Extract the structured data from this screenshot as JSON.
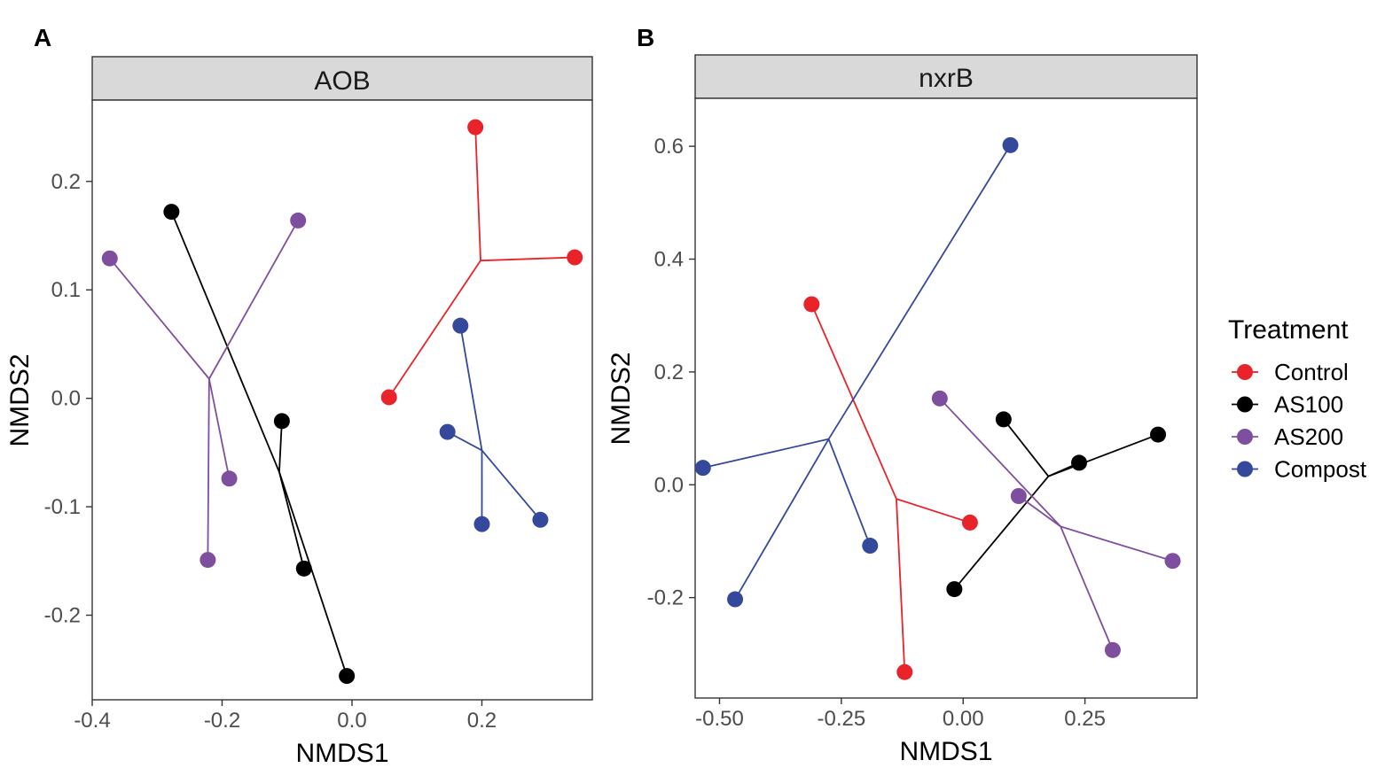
{
  "legend": {
    "title": "Treatment",
    "items": [
      {
        "label": "Control",
        "color": "#e8232a"
      },
      {
        "label": "AS100",
        "color": "#000000"
      },
      {
        "label": "AS200",
        "color": "#7f4f9f"
      },
      {
        "label": "Compost",
        "color": "#34499b"
      }
    ]
  },
  "chart_data": [
    {
      "type": "scatter",
      "panel_letter": "A",
      "title": "AOB",
      "xlabel": "NMDS1",
      "ylabel": "NMDS2",
      "xlim": [
        -0.4,
        0.37
      ],
      "ylim": [
        -0.278,
        0.275
      ],
      "xticks": [
        -0.4,
        -0.2,
        0.0,
        0.2
      ],
      "xtick_labels": [
        "-0.4",
        "-0.2",
        "0.0",
        "0.2"
      ],
      "yticks": [
        -0.2,
        -0.1,
        0.0,
        0.1,
        0.2
      ],
      "ytick_labels": [
        "-0.2",
        "-0.1",
        "0.0",
        "0.1",
        "0.2"
      ],
      "grid": false,
      "series": [
        {
          "name": "Control",
          "color": "#e8232a",
          "centroid": [
            0.198,
            0.127
          ],
          "points": [
            [
              0.19,
              0.25
            ],
            [
              0.343,
              0.13
            ],
            [
              0.057,
              0.001
            ]
          ]
        },
        {
          "name": "AS100",
          "color": "#000000",
          "centroid": [
            -0.112,
            -0.068
          ],
          "points": [
            [
              -0.278,
              0.172
            ],
            [
              -0.108,
              -0.021
            ],
            [
              -0.074,
              -0.157
            ],
            [
              -0.008,
              -0.256
            ]
          ]
        },
        {
          "name": "AS200",
          "color": "#7f4f9f",
          "centroid": [
            -0.22,
            0.018
          ],
          "points": [
            [
              -0.373,
              0.129
            ],
            [
              -0.083,
              0.164
            ],
            [
              -0.189,
              -0.074
            ],
            [
              -0.222,
              -0.149
            ]
          ]
        },
        {
          "name": "Compost",
          "color": "#34499b",
          "centroid": [
            0.2,
            -0.048
          ],
          "points": [
            [
              0.167,
              0.067
            ],
            [
              0.147,
              -0.031
            ],
            [
              0.2,
              -0.116
            ],
            [
              0.29,
              -0.112
            ]
          ]
        }
      ]
    },
    {
      "type": "scatter",
      "panel_letter": "B",
      "title": "nxrB",
      "xlabel": "NMDS1",
      "ylabel": "NMDS2",
      "xlim": [
        -0.55,
        0.48
      ],
      "ylim": [
        -0.378,
        0.685
      ],
      "xticks": [
        -0.5,
        -0.25,
        0.0,
        0.25
      ],
      "xtick_labels": [
        "-0.50",
        "-0.25",
        "0.00",
        "0.25"
      ],
      "yticks": [
        -0.2,
        0.0,
        0.2,
        0.4,
        0.6
      ],
      "ytick_labels": [
        "-0.2",
        "0.0",
        "0.2",
        "0.4",
        "0.6"
      ],
      "grid": false,
      "series": [
        {
          "name": "Control",
          "color": "#e8232a",
          "centroid": [
            -0.137,
            -0.025
          ],
          "points": [
            [
              -0.311,
              0.32
            ],
            [
              0.014,
              -0.067
            ],
            [
              -0.12,
              -0.332
            ]
          ]
        },
        {
          "name": "AS100",
          "color": "#000000",
          "centroid": [
            0.175,
            0.015
          ],
          "points": [
            [
              0.083,
              0.116
            ],
            [
              0.238,
              0.039
            ],
            [
              0.4,
              0.089
            ],
            [
              -0.018,
              -0.185
            ]
          ]
        },
        {
          "name": "AS200",
          "color": "#7f4f9f",
          "centroid": [
            0.2,
            -0.074
          ],
          "points": [
            [
              -0.048,
              0.153
            ],
            [
              0.114,
              -0.02
            ],
            [
              0.43,
              -0.135
            ],
            [
              0.307,
              -0.293
            ]
          ]
        },
        {
          "name": "Compost",
          "color": "#34499b",
          "centroid": [
            -0.276,
            0.081
          ],
          "points": [
            [
              0.097,
              0.602
            ],
            [
              -0.534,
              0.03
            ],
            [
              -0.191,
              -0.108
            ],
            [
              -0.468,
              -0.203
            ]
          ]
        }
      ]
    }
  ]
}
